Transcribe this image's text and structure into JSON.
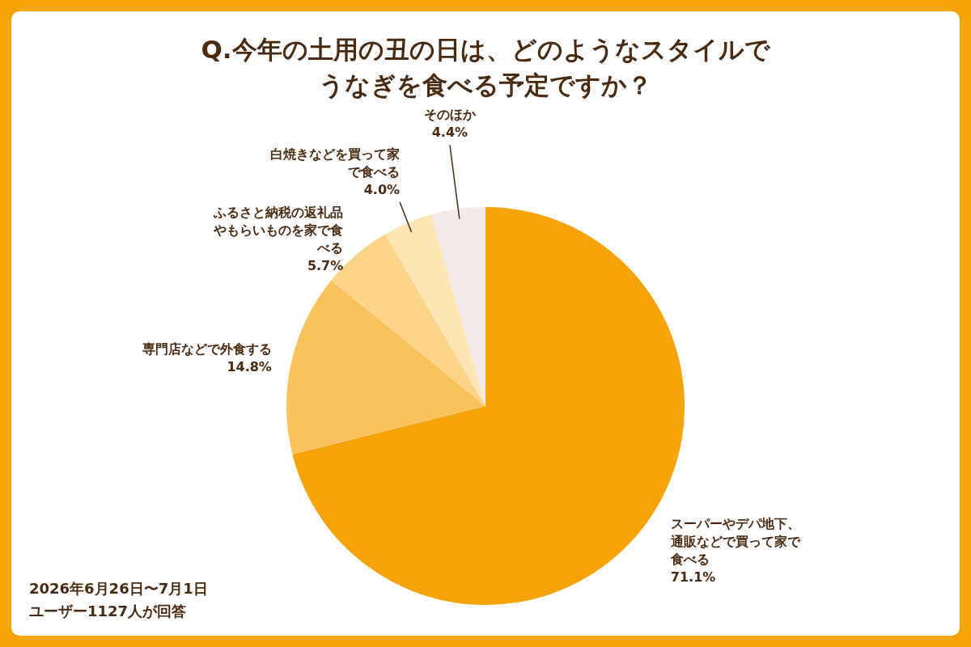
{
  "chart_data": {
    "type": "pie",
    "title": "Q.今年の土用の丑の日は、どのようなスタイルでうなぎを食べる予定ですか？",
    "categories": [
      "スーパーやデパ地下、通販などで買って家で食べる",
      "専門店などで外食する",
      "ふるさと納税の返礼品やもらいものを家で食べる",
      "白焼きなどを買って家で食べる",
      "そのほか"
    ],
    "values": [
      71.1,
      14.8,
      5.7,
      4.0,
      4.4
    ],
    "colors": [
      "#f5a309",
      "#f9c25c",
      "#fbd48a",
      "#fde5b6",
      "#f3eae8"
    ],
    "data_labels": true,
    "value_labels": [
      "71.1%",
      "14.8%",
      "5.7%",
      "4.0%",
      "4.4%"
    ],
    "annotations": [
      "2026年6月26日〜7月1日",
      "ユーザー1127人が回答"
    ]
  }
}
